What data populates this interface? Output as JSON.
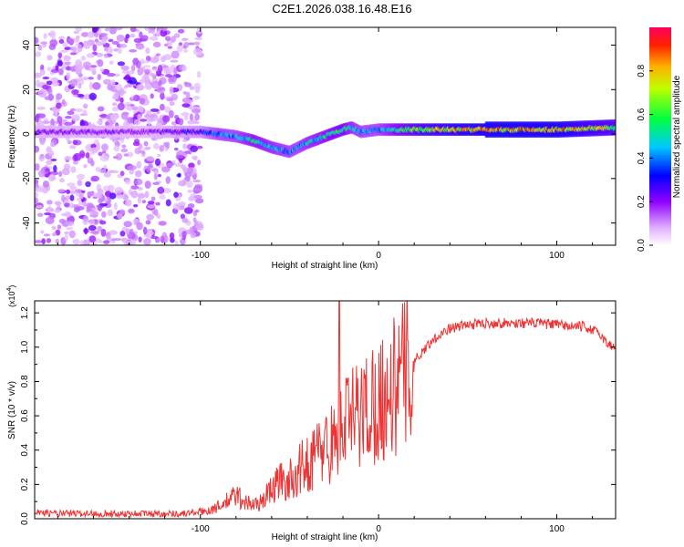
{
  "title": "C2E1.2026.038.16.48.E16",
  "chart_data": [
    {
      "type": "heatmap",
      "title": "C2E1.2026.038.16.48.E16",
      "xlabel": "Height of straight line (km)",
      "ylabel": "Frequency (Hz)",
      "xlim": [
        -193,
        133
      ],
      "ylim": [
        -50,
        48
      ],
      "xticks": [
        -100,
        0,
        100
      ],
      "yticks": [
        -40,
        -20,
        0,
        20,
        40
      ],
      "xtick_labels": [
        "-100",
        "0",
        "100"
      ],
      "ytick_labels": [
        "-40",
        "-20",
        "0",
        "20",
        "40"
      ],
      "colorbar": {
        "label": "Normalized spectral amplitude",
        "range": [
          0,
          1
        ],
        "ticks": [
          0.0,
          0.2,
          0.4,
          0.6,
          0.8
        ],
        "tick_labels": [
          "0.0",
          "0.2",
          "0.4",
          "0.6",
          "0.8"
        ],
        "colormap": [
          "#ffffff",
          "#c040ff",
          "#0000ff",
          "#00c8ff",
          "#00ff00",
          "#ffff00",
          "#ff8000",
          "#ff0000"
        ]
      },
      "ridge": {
        "description": "dominant frequency vs height",
        "heights": [
          -193,
          -160,
          -130,
          -100,
          -90,
          -80,
          -70,
          -60,
          -50,
          -45,
          -40,
          -30,
          -20,
          -15,
          -10,
          0,
          20,
          40,
          60,
          80,
          100,
          133
        ],
        "frequency": [
          1,
          1,
          1,
          1,
          0,
          -1,
          -3,
          -6,
          -8,
          -6,
          -4,
          -1,
          2,
          3,
          1,
          2,
          2,
          2,
          2,
          2,
          2,
          3
        ],
        "amplitude": [
          0.22,
          0.22,
          0.2,
          0.3,
          0.45,
          0.45,
          0.55,
          0.5,
          0.45,
          0.45,
          0.5,
          0.55,
          0.6,
          0.5,
          0.45,
          0.45,
          0.7,
          0.8,
          0.85,
          0.85,
          0.85,
          0.7
        ]
      }
    },
    {
      "type": "line",
      "xlabel": "Height of straight line (km)",
      "ylabel": "SNR (10 * v/v)",
      "y_multiplier": "(x10",
      "y_exponent": "4",
      "xlim": [
        -193,
        133
      ],
      "ylim": [
        0,
        1.27
      ],
      "xticks": [
        -100,
        0,
        100
      ],
      "xtick_labels": [
        "-100",
        "0",
        "100"
      ],
      "yticks": [
        0.0,
        0.2,
        0.4,
        0.6,
        0.8,
        1.0,
        1.2
      ],
      "ytick_labels": [
        "0.0",
        "0.2",
        "0.4",
        "0.6",
        "0.8",
        "1.0",
        "1.2"
      ],
      "color": "#ee3333",
      "series": [
        {
          "name": "SNR",
          "x": [
            -193,
            -180,
            -160,
            -140,
            -120,
            -110,
            -100,
            -95,
            -90,
            -85,
            -80,
            -75,
            -70,
            -65,
            -60,
            -55,
            -50,
            -45,
            -40,
            -35,
            -30,
            -25,
            -22,
            -20,
            -15,
            -10,
            -5,
            0,
            5,
            10,
            15,
            20,
            25,
            30,
            35,
            40,
            45,
            50,
            60,
            70,
            80,
            90,
            100,
            110,
            115,
            120,
            125,
            128,
            133
          ],
          "y": [
            0.04,
            0.03,
            0.03,
            0.03,
            0.03,
            0.03,
            0.04,
            0.05,
            0.07,
            0.1,
            0.14,
            0.1,
            0.08,
            0.1,
            0.18,
            0.22,
            0.22,
            0.28,
            0.32,
            0.38,
            0.42,
            0.45,
            0.5,
            0.56,
            0.58,
            0.62,
            0.66,
            0.7,
            0.72,
            0.78,
            0.86,
            0.92,
            0.98,
            1.04,
            1.08,
            1.11,
            1.12,
            1.13,
            1.14,
            1.14,
            1.14,
            1.14,
            1.13,
            1.12,
            1.12,
            1.1,
            1.07,
            1.02,
            1.0
          ]
        }
      ]
    }
  ]
}
